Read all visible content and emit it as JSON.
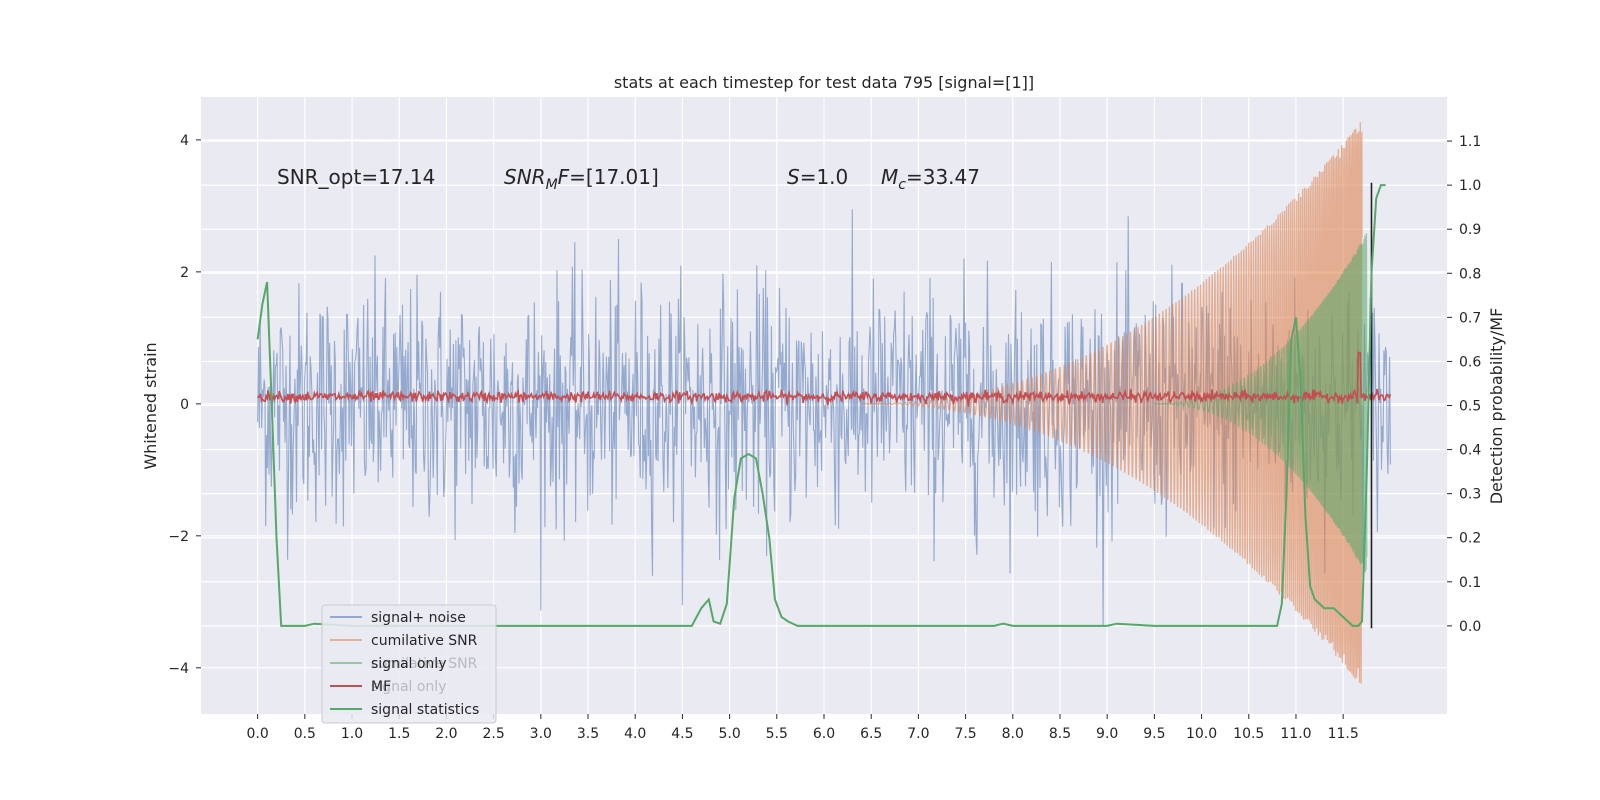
{
  "chart_data": {
    "type": "line",
    "title": "stats at each timestep for test data 795 [signal=[1]]",
    "xlabel": "",
    "ylabel": "Whitened strain",
    "ylabel_right": "Detection probability/MF",
    "xlim": [
      -0.6,
      12.6
    ],
    "ylim": [
      -4.7,
      4.65
    ],
    "ylim_right": [
      -0.2,
      1.2
    ],
    "x_ticks": [
      0.0,
      0.5,
      1.0,
      1.5,
      2.0,
      2.5,
      3.0,
      3.5,
      4.0,
      4.5,
      5.0,
      5.5,
      6.0,
      6.5,
      7.0,
      7.5,
      8.0,
      8.5,
      9.0,
      9.5,
      10.0,
      10.5,
      11.0,
      11.5
    ],
    "x_tick_labels": [
      "0.0",
      "0.5",
      "1.0",
      "1.5",
      "2.0",
      "2.5",
      "3.0",
      "3.5",
      "4.0",
      "4.5",
      "5.0",
      "5.5",
      "6.0",
      "6.5",
      "7.0",
      "7.5",
      "8.0",
      "8.5",
      "9.0",
      "9.5",
      "10.0",
      "10.5",
      "11.0",
      "11.5"
    ],
    "y_ticks": [
      -4,
      -2,
      0,
      2,
      4
    ],
    "y_tick_labels": [
      "−4",
      "−2",
      "0",
      "2",
      "4"
    ],
    "y_right_ticks": [
      0.0,
      0.1,
      0.2,
      0.3,
      0.4,
      0.5,
      0.6,
      0.7,
      0.8,
      0.9,
      1.0,
      1.1
    ],
    "y_right_tick_labels": [
      "0.0",
      "0.1",
      "0.2",
      "0.3",
      "0.4",
      "0.5",
      "0.6",
      "0.7",
      "0.8",
      "0.9",
      "1.0",
      "1.1"
    ],
    "grid": true,
    "legend_position": "lower-left",
    "annotations": [
      {
        "id": "snr-opt",
        "text": "SNR_opt=17.14",
        "x": 0.2,
        "y": 3.45
      },
      {
        "id": "snr-mf",
        "text": "SNR_MF=[17.01]",
        "x": 2.6,
        "y": 3.45
      },
      {
        "id": "s-value",
        "text": "S=1.0",
        "x": 5.6,
        "y": 3.45
      },
      {
        "id": "mc-value",
        "text": "Mc=33.47",
        "x": 6.6,
        "y": 3.45
      }
    ],
    "series": [
      {
        "name": "signal+ noise",
        "color": "#4c72b0",
        "axis": "left",
        "style": "noise",
        "x_range": [
          0.0,
          12.0
        ],
        "amplitude": 1.2
      },
      {
        "name": "cumilative SNR",
        "color": "#dd8452",
        "axis": "left",
        "style": "chirp",
        "x_range": [
          6.4,
          11.7
        ],
        "peak": 4.3
      },
      {
        "name": "signal only",
        "color": "#55a868",
        "axis": "left",
        "style": "chirp",
        "x_range": [
          9.5,
          11.75
        ],
        "peak": 2.6
      },
      {
        "name": "MF",
        "color": "#c44e52",
        "axis": "right",
        "style": "mf",
        "x_range": [
          0.0,
          12.0
        ],
        "level": 0.52,
        "spike": {
          "x": 11.67,
          "value": 0.62
        }
      },
      {
        "name": "signal statistics",
        "color": "#55a868",
        "axis": "right",
        "style": "line",
        "x": [
          0.0,
          0.05,
          0.1,
          0.15,
          0.2,
          0.25,
          0.3,
          0.4,
          0.5,
          0.6,
          1.0,
          2.0,
          2.9,
          3.0,
          4.0,
          4.4,
          4.6,
          4.7,
          4.78,
          4.83,
          4.9,
          4.97,
          5.05,
          5.12,
          5.2,
          5.28,
          5.35,
          5.42,
          5.48,
          5.55,
          5.62,
          5.72,
          5.85,
          6.0,
          7.0,
          7.8,
          7.9,
          8.0,
          8.5,
          9.0,
          9.1,
          9.5,
          10.0,
          10.7,
          10.8,
          10.85,
          10.9,
          10.95,
          11.0,
          11.05,
          11.1,
          11.15,
          11.2,
          11.3,
          11.4,
          11.5,
          11.6,
          11.63,
          11.66,
          11.7,
          11.75,
          11.8,
          11.85,
          11.9,
          11.95
        ],
        "values": [
          0.65,
          0.73,
          0.78,
          0.5,
          0.2,
          0.0,
          0.0,
          0.0,
          0.0,
          0.005,
          0.0,
          0.0,
          0.0,
          0.0,
          0.0,
          0.0,
          0.0,
          0.04,
          0.06,
          0.01,
          0.005,
          0.05,
          0.29,
          0.38,
          0.39,
          0.38,
          0.3,
          0.2,
          0.06,
          0.02,
          0.01,
          0.0,
          0.0,
          0.0,
          0.0,
          0.0,
          0.005,
          0.0,
          0.0,
          0.0,
          0.005,
          0.0,
          0.0,
          0.0,
          0.0,
          0.05,
          0.3,
          0.65,
          0.7,
          0.55,
          0.25,
          0.09,
          0.06,
          0.04,
          0.04,
          0.02,
          0.0,
          0.0,
          0.0,
          0.01,
          0.35,
          0.8,
          0.97,
          1.0,
          1.0
        ]
      }
    ],
    "vertical_lines": [
      {
        "x": 11.8,
        "y_from": -3.4,
        "y_to": 3.35,
        "color": "#222222"
      }
    ],
    "legend": {
      "entries": [
        {
          "label": "signal+ noise",
          "color": "#4c72b0",
          "alpha": 0.55
        },
        {
          "label": "cumilative SNR",
          "color": "#dd8452",
          "alpha": 0.55
        },
        {
          "label": "signal only",
          "color": "#55a868",
          "alpha": 0.55
        },
        {
          "label": "MF",
          "color": "#c44e52",
          "alpha": 1.0
        },
        {
          "label": "signal statistics",
          "color": "#55a868",
          "alpha": 1.0
        }
      ],
      "ghost_entries": [
        {
          "label": "cumilative SNR"
        },
        {
          "label": "signal only"
        }
      ]
    }
  }
}
